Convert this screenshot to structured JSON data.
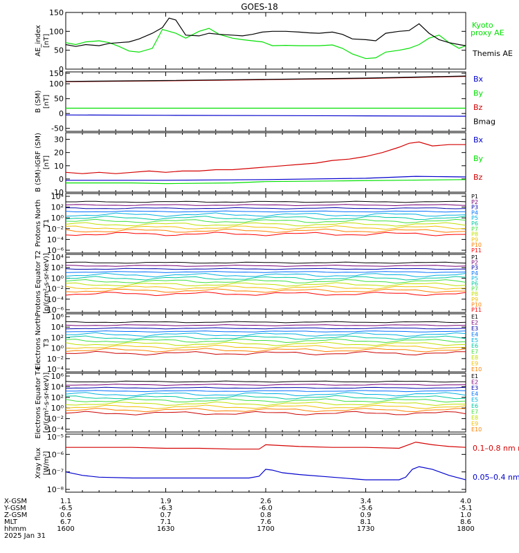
{
  "title": "GOES-18",
  "colors": {
    "black": "#000000",
    "green": "#00e000",
    "red": "#d40000",
    "blue": "#0000cc"
  },
  "bottom_axis": {
    "row_labels": [
      "X-GSM",
      "Y-GSM",
      "Z-GSM",
      "MLT",
      "hhmm"
    ],
    "date": "2025 Jan 31",
    "ticks": [
      {
        "values": [
          "1.1",
          "-6.5",
          "0.6",
          "6.7",
          "1600"
        ]
      },
      {
        "values": [
          "1.9",
          "-6.3",
          "0.7",
          "7.1",
          "1630"
        ]
      },
      {
        "values": [
          "2.6",
          "-6.0",
          "0.8",
          "7.6",
          "1700"
        ]
      },
      {
        "values": [
          "3.4",
          "-5.6",
          "0.9",
          "8.1",
          "1730"
        ]
      },
      {
        "values": [
          "4.0",
          "-5.1",
          "1.0",
          "8.6",
          "1800"
        ]
      }
    ]
  },
  "chart_data": [
    {
      "type": "line",
      "ylabel": "AE_index [nT]",
      "ylim": [
        0,
        150
      ],
      "yticks": [
        "0",
        "50",
        "100",
        "150"
      ],
      "legend": [
        "Kyoto proxy AE",
        "Themis AE"
      ],
      "series": [
        {
          "name": "Kyoto proxy AE",
          "color": "#00e000",
          "x": [
            1600,
            1603,
            1606,
            1610,
            1613,
            1616,
            1619,
            1622,
            1626,
            1629,
            1633,
            1636,
            1640,
            1643,
            1646,
            1650,
            1653,
            1656,
            1659,
            1702,
            1706,
            1710,
            1713,
            1716,
            1720,
            1723,
            1726,
            1730,
            1733,
            1736,
            1740,
            1743,
            1746,
            1749,
            1752,
            1755,
            1758,
            1800
          ],
          "values": [
            70,
            65,
            72,
            75,
            70,
            60,
            48,
            45,
            55,
            105,
            95,
            82,
            100,
            108,
            92,
            82,
            78,
            75,
            72,
            62,
            63,
            62,
            62,
            62,
            64,
            55,
            40,
            28,
            30,
            45,
            50,
            55,
            65,
            82,
            90,
            70,
            55,
            62
          ]
        },
        {
          "name": "Themis AE",
          "color": "#000000",
          "x": [
            1600,
            1603,
            1606,
            1610,
            1613,
            1616,
            1619,
            1622,
            1626,
            1629,
            1631,
            1633,
            1636,
            1640,
            1643,
            1646,
            1650,
            1653,
            1656,
            1659,
            1702,
            1706,
            1710,
            1713,
            1716,
            1720,
            1723,
            1726,
            1730,
            1733,
            1736,
            1740,
            1743,
            1746,
            1749,
            1752,
            1755,
            1758,
            1800
          ],
          "values": [
            65,
            60,
            65,
            62,
            68,
            70,
            72,
            80,
            95,
            110,
            135,
            130,
            90,
            88,
            95,
            92,
            90,
            88,
            92,
            98,
            100,
            100,
            98,
            96,
            95,
            98,
            92,
            80,
            78,
            75,
            95,
            100,
            102,
            120,
            95,
            78,
            70,
            65,
            62
          ]
        }
      ]
    },
    {
      "type": "line",
      "ylabel": "B (SM) [nT]",
      "ylim": [
        -60,
        140
      ],
      "yticks": [
        "-50",
        "0",
        "50",
        "100",
        "150"
      ],
      "legend": [
        "Bx",
        "By",
        "Bz",
        "Bmag"
      ],
      "series": [
        {
          "name": "Bz",
          "color": "#d40000",
          "x": [
            1600,
            1630,
            1700,
            1730,
            1800
          ],
          "values": [
            107,
            110,
            114,
            118,
            125
          ]
        },
        {
          "name": "Bmag",
          "color": "#000000",
          "x": [
            1600,
            1630,
            1700,
            1730,
            1800
          ],
          "values": [
            108,
            111,
            115,
            119,
            126
          ]
        },
        {
          "name": "By",
          "color": "#00e000",
          "x": [
            1600,
            1630,
            1700,
            1730,
            1800
          ],
          "values": [
            18,
            18,
            18,
            18,
            18
          ]
        },
        {
          "name": "Bx",
          "color": "#0000cc",
          "x": [
            1600,
            1630,
            1700,
            1730,
            1800
          ],
          "values": [
            -5,
            -6,
            -7,
            -8,
            -9
          ]
        }
      ]
    },
    {
      "type": "line",
      "ylabel": "B (SM)-IGRF (SM) [nT]",
      "ylim": [
        -10,
        35
      ],
      "yticks": [
        "-10",
        "0",
        "10",
        "20",
        "30"
      ],
      "legend": [
        "Bx",
        "By",
        "Bz"
      ],
      "series": [
        {
          "name": "Bz",
          "color": "#d40000",
          "x": [
            1600,
            1605,
            1610,
            1615,
            1620,
            1625,
            1630,
            1635,
            1640,
            1645,
            1650,
            1655,
            1700,
            1705,
            1710,
            1715,
            1720,
            1725,
            1730,
            1735,
            1740,
            1743,
            1746,
            1750,
            1755,
            1800
          ],
          "values": [
            5,
            4,
            5,
            4,
            5,
            6,
            5,
            6,
            6,
            7,
            7,
            8,
            9,
            10,
            11,
            12,
            14,
            15,
            17,
            20,
            24,
            27,
            28,
            25,
            26,
            26
          ]
        },
        {
          "name": "Bx",
          "color": "#0000cc",
          "x": [
            1600,
            1630,
            1700,
            1730,
            1745,
            1800
          ],
          "values": [
            -1,
            -1,
            -0.5,
            0.5,
            2,
            1.5
          ]
        },
        {
          "name": "By",
          "color": "#00e000",
          "x": [
            1600,
            1620,
            1630,
            1650,
            1700,
            1720,
            1740,
            1800
          ],
          "values": [
            -3,
            -3,
            -3.5,
            -3,
            -2,
            -1.5,
            -1,
            -0.5
          ]
        }
      ]
    },
    {
      "type": "line",
      "ylabel": "Protons North T1",
      "yticks": [
        "10⁴",
        "10²",
        "10⁰",
        "10⁻²",
        "10⁻⁴",
        "10⁻⁶"
      ],
      "legend": [
        "P1",
        "P2",
        "P3",
        "P4",
        "P5",
        "P6",
        "P7",
        "P8",
        "P9",
        "P10",
        "P11"
      ]
    },
    {
      "type": "line",
      "ylabel": "Protons Equator T2 [p/(cm²-s-sr-keV)]",
      "yticks": [
        "10⁴",
        "10²",
        "10⁰",
        "10⁻²",
        "10⁻⁴",
        "10⁻⁶"
      ],
      "legend": [
        "P1",
        "P2",
        "P3",
        "P4",
        "P5",
        "P6",
        "P7",
        "P8",
        "P9",
        "P10",
        "P11"
      ]
    },
    {
      "type": "line",
      "ylabel": "Electrons North T3",
      "yticks": [
        "10⁶",
        "10⁴",
        "10²",
        "10⁰",
        "10⁻²",
        "10⁻⁴"
      ],
      "legend": [
        "E1",
        "E2",
        "E3",
        "E4",
        "E5",
        "E6",
        "E7",
        "E8",
        "E9",
        "E10"
      ]
    },
    {
      "type": "line",
      "ylabel": "Electrons Equator T4 [e/(cm²-s-sr-keV)]",
      "yticks": [
        "10⁶",
        "10⁴",
        "10²",
        "10⁰",
        "10⁻²",
        "10⁻⁴"
      ],
      "legend": [
        "E1",
        "E2",
        "E3",
        "E4",
        "E5",
        "E6",
        "E7",
        "E8",
        "E9",
        "E10"
      ]
    },
    {
      "type": "line",
      "ylabel": "Xray flux [W/m²]",
      "yticks": [
        "10⁻⁵",
        "10⁻⁶",
        "10⁻⁷",
        "10⁻⁸"
      ],
      "legend": [
        "0.1–0.8 nm",
        "0.05–0.4 nm"
      ],
      "series": [
        {
          "name": "0.1–0.8 nm",
          "color": "#d40000",
          "x": [
            1600,
            1610,
            1620,
            1630,
            1640,
            1650,
            1658,
            1700,
            1710,
            1720,
            1730,
            1740,
            1745,
            1750,
            1755,
            1800
          ],
          "values": [
            -5.6,
            -5.6,
            -5.6,
            -5.65,
            -5.65,
            -5.7,
            -5.7,
            -5.45,
            -5.55,
            -5.6,
            -5.6,
            -5.65,
            -5.3,
            -5.45,
            -5.55,
            -5.6
          ]
        },
        {
          "name": "0.05–0.4 nm",
          "color": "#0000cc",
          "x": [
            1600,
            1605,
            1610,
            1620,
            1630,
            1640,
            1650,
            1655,
            1658,
            1700,
            1702,
            1705,
            1710,
            1720,
            1730,
            1740,
            1742,
            1744,
            1746,
            1750,
            1755,
            1800
          ],
          "values": [
            -7.0,
            -7.2,
            -7.3,
            -7.35,
            -7.35,
            -7.35,
            -7.35,
            -7.35,
            -7.25,
            -6.85,
            -6.9,
            -7.05,
            -7.15,
            -7.3,
            -7.45,
            -7.45,
            -7.3,
            -6.85,
            -6.7,
            -6.85,
            -7.2,
            -7.45
          ]
        }
      ]
    }
  ]
}
